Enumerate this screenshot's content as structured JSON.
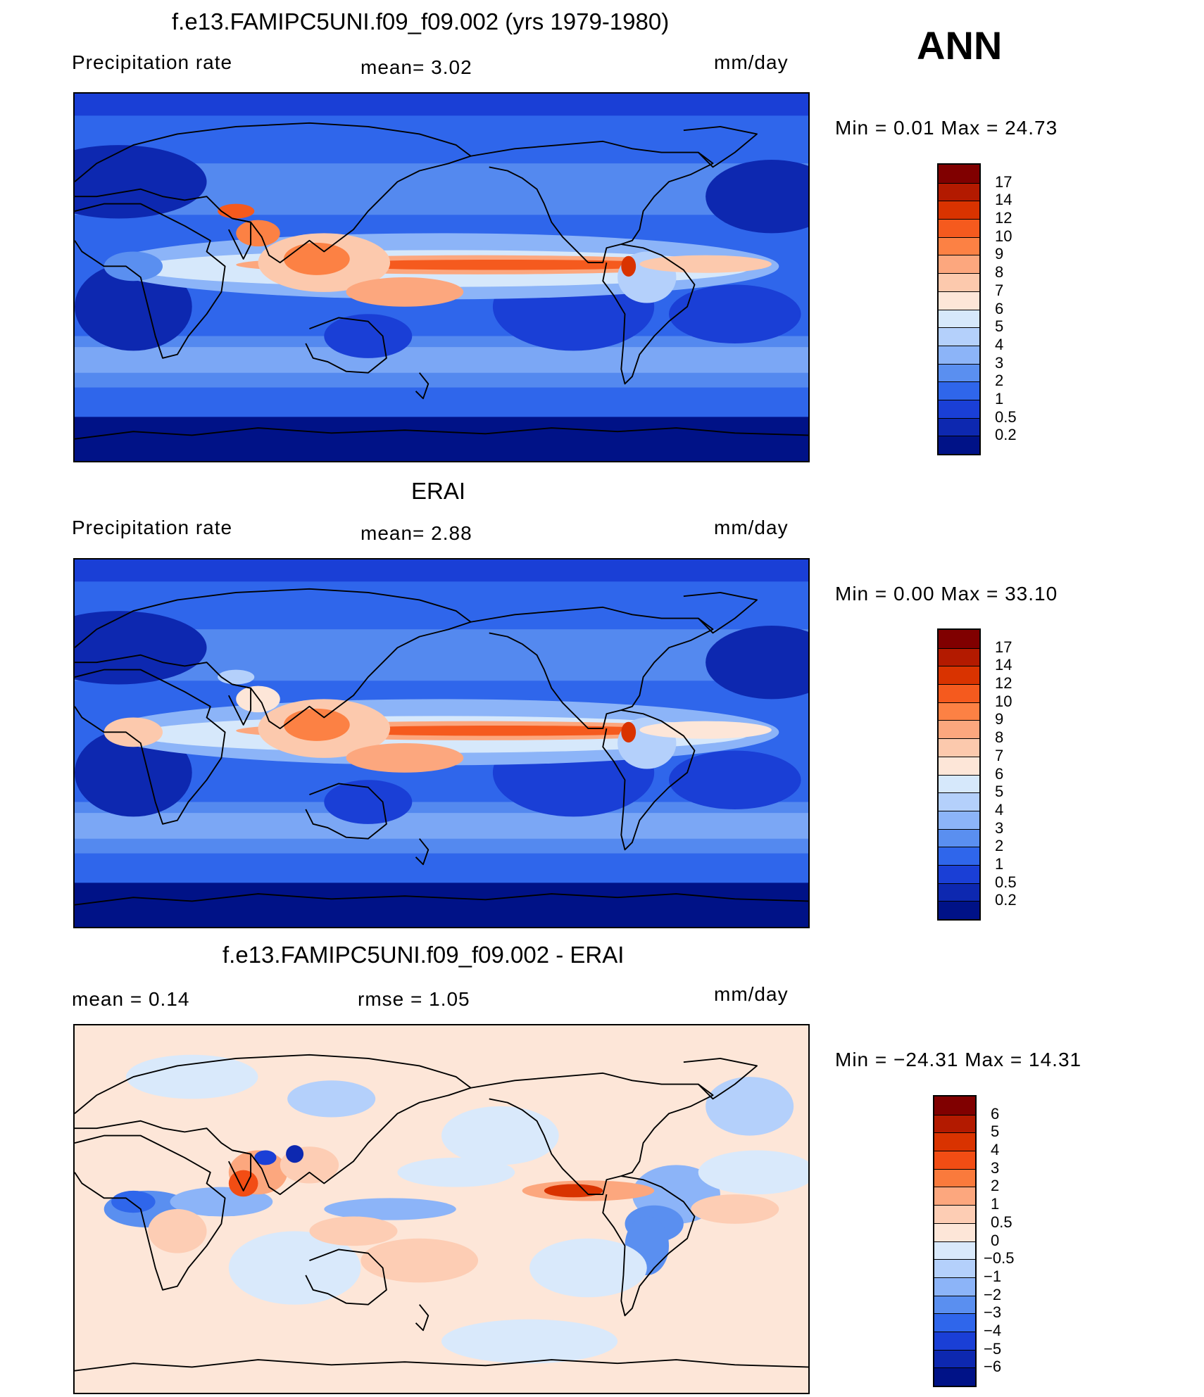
{
  "season": "ANN",
  "panels": [
    {
      "id": "model",
      "title": "f.e13.FAMIPC5UNI.f09_f09.002 (yrs 1979-1980)",
      "left_label": "Precipitation  rate",
      "mid_label": "mean=    3.02",
      "units": "mm/day",
      "minmax": "Min  =     0.01  Max  =    24.73"
    },
    {
      "id": "obs",
      "title": "ERAI",
      "left_label": "Precipitation  rate",
      "mid_label": "mean=    2.88",
      "units": "mm/day",
      "minmax": "Min  =     0.00  Max  =    33.10"
    },
    {
      "id": "diff",
      "title": "f.e13.FAMIPC5UNI.f09_f09.002 - ERAI",
      "left_label": "mean  =     0.14",
      "mid_label": "rmse  =     1.05",
      "units": "mm/day",
      "minmax": "Min  = −24.31  Max  =    14.31"
    }
  ],
  "chart_data": [
    {
      "type": "heatmap",
      "title": "f.e13.FAMIPC5UNI.f09_f09.002 (yrs 1979-1980)",
      "variable": "Precipitation  rate",
      "units": "mm/day",
      "mean": 3.02,
      "min": 0.01,
      "max": 24.73,
      "colorbar_levels": [
        "17",
        "14",
        "12",
        "10",
        "9",
        "8",
        "7",
        "6",
        "5",
        "4",
        "3",
        "2",
        "1",
        "0.5",
        "0.2"
      ],
      "colors": [
        "#800000",
        "#b31a00",
        "#d93300",
        "#f55a1e",
        "#fc8144",
        "#fca77e",
        "#fcc9ad",
        "#fde6d8",
        "#d6e8fb",
        "#b4d0fb",
        "#8cb4f8",
        "#5a8ff0",
        "#2f66eb",
        "#1a3fd6",
        "#0d28b0",
        "#001287"
      ]
    },
    {
      "type": "heatmap",
      "title": "ERAI",
      "variable": "Precipitation  rate",
      "units": "mm/day",
      "mean": 2.88,
      "min": 0.0,
      "max": 33.1,
      "colorbar_levels": [
        "17",
        "14",
        "12",
        "10",
        "9",
        "8",
        "7",
        "6",
        "5",
        "4",
        "3",
        "2",
        "1",
        "0.5",
        "0.2"
      ],
      "colors": [
        "#800000",
        "#b31a00",
        "#d93300",
        "#f55a1e",
        "#fc8144",
        "#fca77e",
        "#fcc9ad",
        "#fde6d8",
        "#d6e8fb",
        "#b4d0fb",
        "#8cb4f8",
        "#5a8ff0",
        "#2f66eb",
        "#1a3fd6",
        "#0d28b0",
        "#001287"
      ]
    },
    {
      "type": "heatmap",
      "title": "f.e13.FAMIPC5UNI.f09_f09.002 - ERAI",
      "units": "mm/day",
      "mean": 0.14,
      "rmse": 1.05,
      "min": -24.31,
      "max": 14.31,
      "colorbar_levels": [
        "6",
        "5",
        "4",
        "3",
        "2",
        "1",
        "0.5",
        "0",
        "−0.5",
        "−1",
        "−2",
        "−3",
        "−4",
        "−5",
        "−6"
      ],
      "colors": [
        "#800000",
        "#b31a00",
        "#d93300",
        "#f24d14",
        "#fa7a3c",
        "#fca77e",
        "#fdcdb4",
        "#fde6d8",
        "#d9e9fb",
        "#b4d0fb",
        "#8cb4f8",
        "#5a8ff0",
        "#2f66eb",
        "#1a3fd6",
        "#0d28b0",
        "#001287"
      ]
    }
  ]
}
